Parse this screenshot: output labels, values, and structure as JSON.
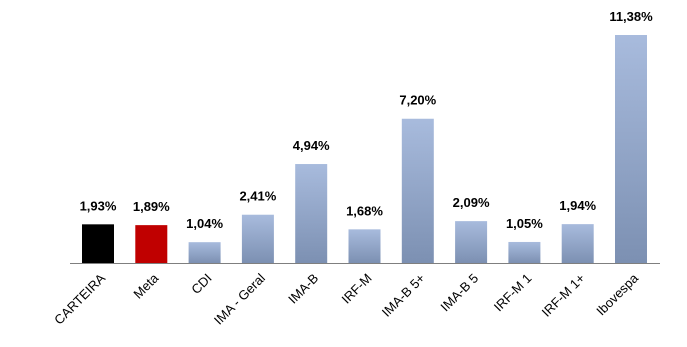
{
  "chart_data": {
    "type": "bar",
    "categories": [
      "CARTEIRA",
      "Meta",
      "CDI",
      "IMA - Geral",
      "IMA-B",
      "IRF-M",
      "IMA-B 5+",
      "IMA-B 5",
      "IRF-M 1",
      "IRF-M 1+",
      "Ibovespa"
    ],
    "values": [
      1.93,
      1.89,
      1.04,
      2.41,
      4.94,
      1.68,
      7.2,
      2.09,
      1.05,
      1.94,
      11.38
    ],
    "value_labels": [
      "1,93%",
      "1,89%",
      "1,04%",
      "2,41%",
      "4,94%",
      "1,68%",
      "7,20%",
      "2,09%",
      "1,05%",
      "1,94%",
      "11,38%"
    ],
    "bar_colors": [
      "#000000",
      "#c00000",
      "gradient",
      "gradient",
      "gradient",
      "gradient",
      "gradient",
      "gradient",
      "gradient",
      "gradient",
      "gradient"
    ],
    "gradient_colors": {
      "top": "#a8bbdd",
      "bottom": "#7c90b2"
    },
    "title": "",
    "xlabel": "",
    "ylabel": "",
    "ylim": [
      0,
      11.38
    ],
    "grid": false,
    "legend": "none"
  }
}
